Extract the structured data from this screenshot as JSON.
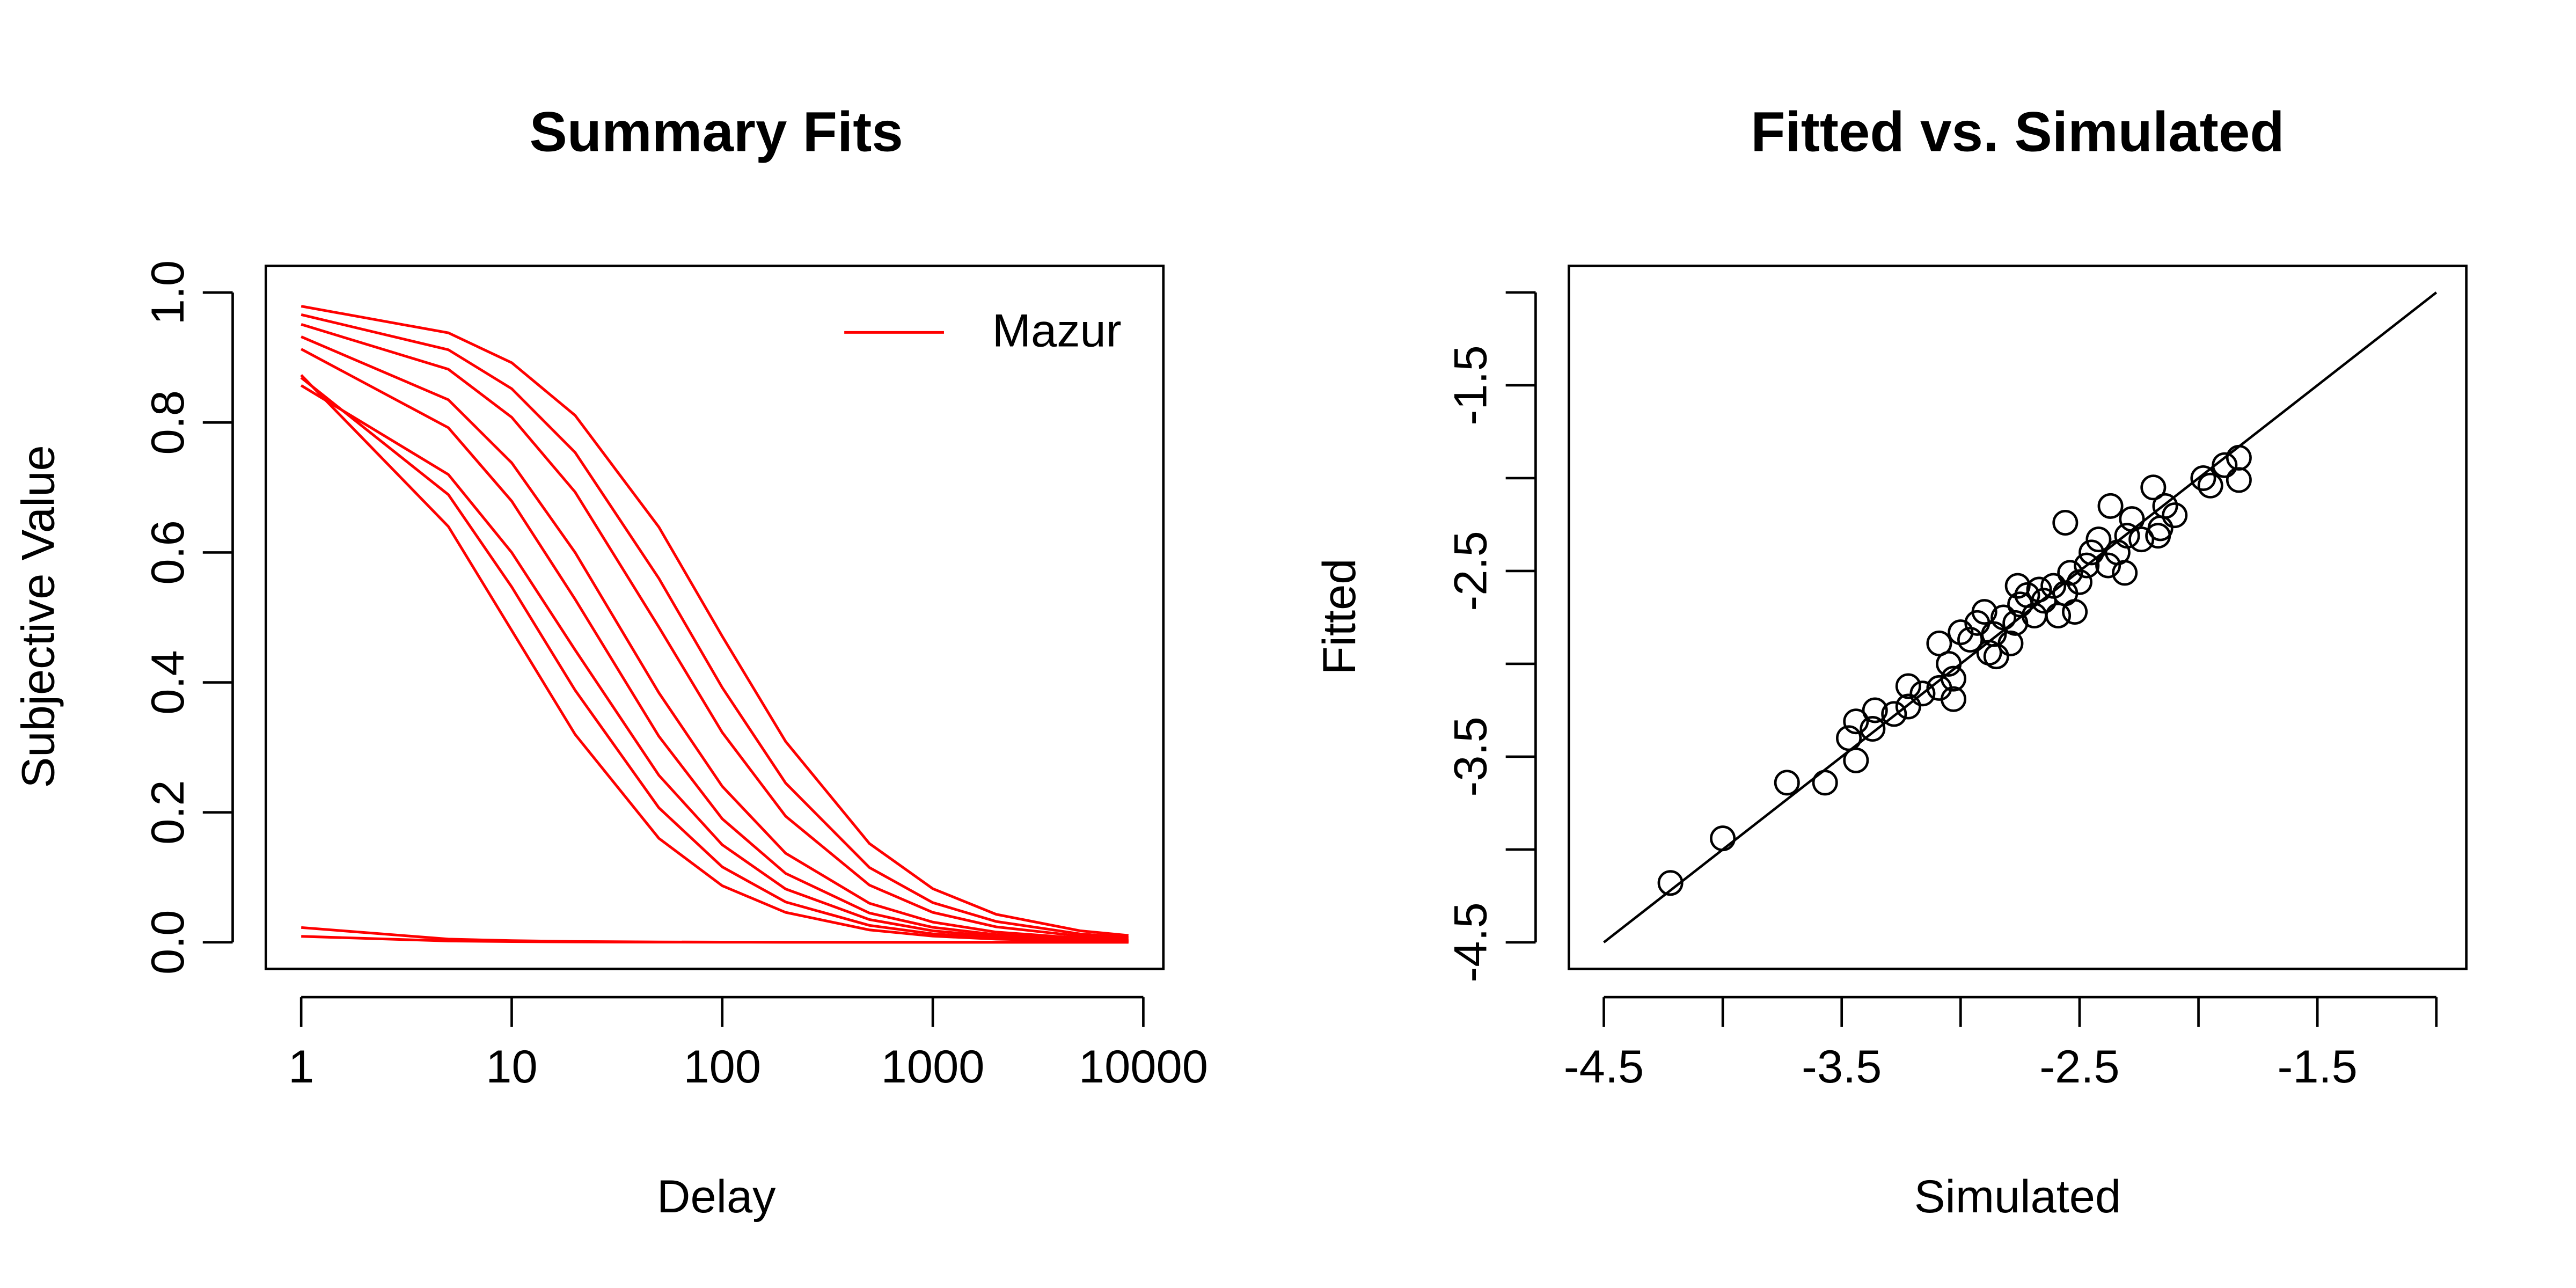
{
  "chart_data": [
    {
      "type": "line",
      "title": "Summary Fits",
      "x_label": "Delay",
      "y_label": "Subjective Value",
      "log_x": true,
      "legend": "topright",
      "x": [
        1,
        5,
        10,
        20,
        50,
        100,
        200,
        500,
        1000,
        2000,
        5000,
        8500
      ],
      "xlim": [
        0.68,
        12450
      ],
      "xticks": [
        1,
        10,
        100,
        1000,
        10000
      ],
      "ylim": [
        -0.041,
        1.041
      ],
      "yticks": [
        {
          "value": 0,
          "label": "0.0"
        },
        {
          "value": 0.2,
          "label": "0.2"
        },
        {
          "value": 0.4,
          "label": "0.4"
        },
        {
          "value": 0.6,
          "label": "0.6"
        },
        {
          "value": 0.8,
          "label": "0.8"
        },
        {
          "value": 1,
          "label": "1.0"
        }
      ],
      "series": [
        {
          "name": "Mazur",
          "color": "#ff0000",
          "values": [
            0.979,
            0.938,
            0.892,
            0.811,
            0.639,
            0.471,
            0.309,
            0.152,
            0.0825,
            0.043,
            0.0177,
            0.0105
          ]
        },
        {
          "name": "Mazur",
          "color": "#ff0000",
          "values": [
            0.951,
            0.882,
            0.808,
            0.693,
            0.485,
            0.323,
            0.194,
            0.088,
            0.046,
            0.0237,
            0.0096,
            0.0057
          ]
        },
        {
          "name": "Mazur",
          "color": "#ff0000",
          "values": [
            0.913,
            0.792,
            0.679,
            0.528,
            0.317,
            0.19,
            0.106,
            0.045,
            0.023,
            0.0117,
            0.0047,
            0.0028
          ]
        },
        {
          "name": "Mazur",
          "color": "#ff0000",
          "values": [
            0.869,
            0.689,
            0.547,
            0.388,
            0.207,
            0.116,
            0.062,
            0.026,
            0.013,
            0.0066,
            0.0026,
            0.0016
          ]
        },
        {
          "name": "Mazur",
          "color": "#ff0000",
          "values": [
            0.873,
            0.64,
            0.48,
            0.32,
            0.16,
            0.087,
            0.046,
            0.019,
            0.0095,
            0.0048,
            0.0019,
            0.0011
          ]
        },
        {
          "name": "Mazur",
          "color": "#ff0000",
          "values": [
            0.966,
            0.912,
            0.852,
            0.754,
            0.56,
            0.392,
            0.245,
            0.115,
            0.061,
            0.032,
            0.0129,
            0.0076
          ]
        },
        {
          "name": "Mazur",
          "color": "#ff0000",
          "values": [
            0.932,
            0.835,
            0.738,
            0.6,
            0.384,
            0.24,
            0.137,
            0.06,
            0.031,
            0.0157,
            0.0064,
            0.0038
          ]
        },
        {
          "name": "Mazur",
          "color": "#ff0000",
          "values": [
            0.857,
            0.72,
            0.6,
            0.45,
            0.257,
            0.15,
            0.082,
            0.035,
            0.0176,
            0.0089,
            0.0036,
            0.0021
          ]
        },
        {
          "name": "Mazur",
          "color": "#ff0000",
          "values": [
            0.0227,
            0.0049,
            0.0025,
            0.0012,
            0.0005,
            0.00025,
            0.00012,
            5e-05,
            2.5e-05,
            1.25e-05,
            5e-06,
            3e-06
          ]
        },
        {
          "name": "Mazur",
          "color": "#ff0000",
          "values": [
            0.0091,
            0.002,
            0.001,
            0.0005,
            0.0002,
            0.0001,
            5e-05,
            2e-05,
            1e-05,
            5e-06,
            2e-06,
            1e-06
          ]
        }
      ]
    },
    {
      "type": "scatter",
      "title": "Fitted vs. Simulated",
      "x_label": "Simulated",
      "y_label": "Fitted",
      "color": "#000000",
      "xlim": [
        -4.647,
        -0.874
      ],
      "ylim": [
        -4.643,
        -0.857
      ],
      "xticks": [
        -4.5,
        -3.5,
        -2.5,
        -1.5
      ],
      "xticks_minor": [
        -4,
        -3,
        -2,
        -1
      ],
      "yticks": [
        -4.5,
        -3.5,
        -2.5,
        -1.5
      ],
      "yticks_minor": [
        -4,
        -3,
        -2,
        -1
      ],
      "reference_line": {
        "x": [
          -4.5,
          -1
        ],
        "y": [
          -4.5,
          -1
        ]
      },
      "x": [
        -4.22,
        -4.0,
        -3.73,
        -3.57,
        -3.44,
        -3.47,
        -3.44,
        -3.37,
        -3.36,
        -3.28,
        -3.22,
        -3.22,
        -3.16,
        -3.09,
        -3.03,
        -3.09,
        -3.05,
        -3.03,
        -3.0,
        -2.96,
        -2.93,
        -2.9,
        -2.88,
        -2.85,
        -2.86,
        -2.82,
        -2.79,
        -2.77,
        -2.75,
        -2.76,
        -2.72,
        -2.69,
        -2.67,
        -2.65,
        -2.61,
        -2.59,
        -2.56,
        -2.54,
        -2.5,
        -2.52,
        -2.47,
        -2.56,
        -2.45,
        -2.42,
        -2.38,
        -2.37,
        -2.34,
        -2.3,
        -2.31,
        -2.28,
        -2.24,
        -2.19,
        -2.17,
        -2.14,
        -2.16,
        -2.1,
        -1.98,
        -1.89,
        -1.83,
        -1.83,
        -1.95
      ],
      "y": [
        -4.18,
        -3.94,
        -3.64,
        -3.64,
        -3.52,
        -3.4,
        -3.31,
        -3.35,
        -3.25,
        -3.27,
        -3.23,
        -3.12,
        -3.16,
        -3.13,
        -3.19,
        -2.89,
        -3.0,
        -3.08,
        -2.83,
        -2.87,
        -2.78,
        -2.72,
        -2.94,
        -2.96,
        -2.84,
        -2.75,
        -2.89,
        -2.78,
        -2.68,
        -2.58,
        -2.63,
        -2.74,
        -2.6,
        -2.66,
        -2.58,
        -2.74,
        -2.62,
        -2.51,
        -2.56,
        -2.72,
        -2.47,
        -2.24,
        -2.4,
        -2.33,
        -2.47,
        -2.15,
        -2.4,
        -2.31,
        -2.51,
        -2.22,
        -2.33,
        -2.05,
        -2.31,
        -2.15,
        -2.27,
        -2.2,
        -2.0,
        -1.93,
        -1.89,
        -2.01,
        -2.04
      ]
    }
  ]
}
